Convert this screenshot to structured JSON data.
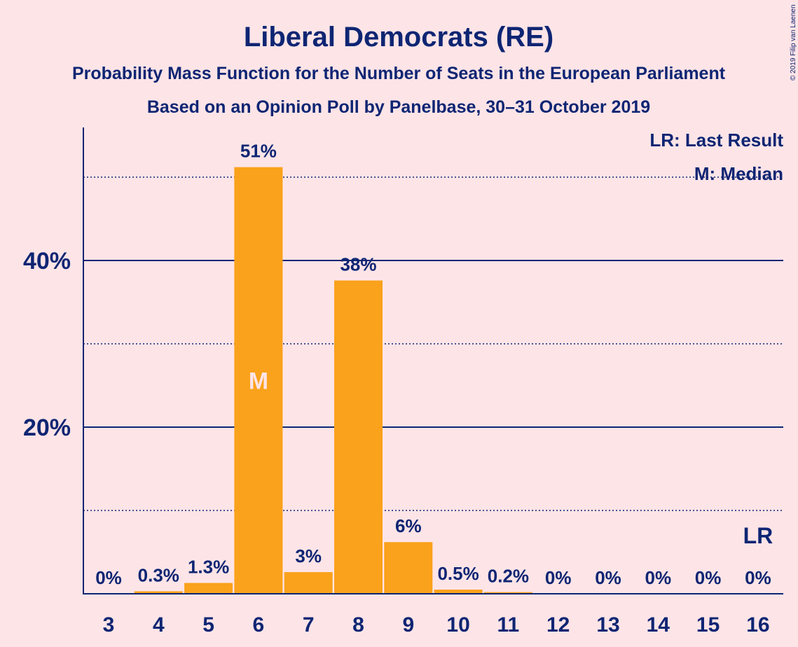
{
  "chart_data": {
    "type": "bar",
    "title": "Liberal Democrats (RE)",
    "subtitle": "Probability Mass Function for the Number of Seats in the European Parliament",
    "subtitle2": "Based on an Opinion Poll by Panelbase, 30–31 October 2019",
    "categories": [
      "3",
      "4",
      "5",
      "6",
      "7",
      "8",
      "9",
      "10",
      "11",
      "12",
      "13",
      "14",
      "15",
      "16"
    ],
    "values": [
      0,
      0.3,
      1.3,
      51.2,
      2.6,
      37.6,
      6.2,
      0.5,
      0.2,
      0,
      0,
      0,
      0,
      0
    ],
    "value_labels": [
      "0%",
      "0.3%",
      "1.3%",
      "51%",
      "3%",
      "38%",
      "6%",
      "0.5%",
      "0.2%",
      "0%",
      "0%",
      "0%",
      "0%",
      "0%"
    ],
    "ylim": [
      0,
      56
    ],
    "yticks_major": [
      20,
      40
    ],
    "ytick_labels": [
      "20%",
      "40%"
    ],
    "yticks_minor": [
      10,
      30,
      50
    ],
    "median_category": "6",
    "median_marker": "M",
    "last_result_category": "16",
    "last_result_marker": "LR",
    "legend": [
      "LR: Last Result",
      "M: Median"
    ],
    "legend_position": "top-right",
    "bar_color": "#FAA21B",
    "axis_color": "#0E2573",
    "background_color": "#FDE4E7",
    "copyright": "© 2019 Filip van Laenen"
  }
}
